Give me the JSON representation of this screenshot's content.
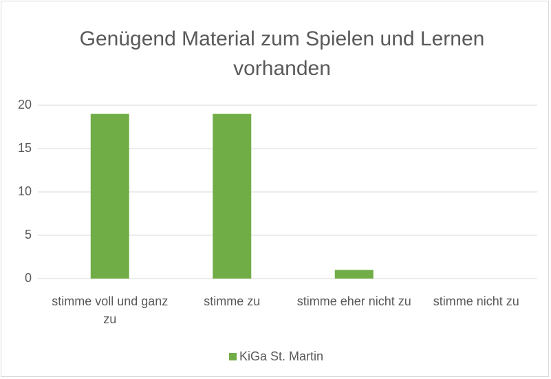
{
  "chart_data": {
    "type": "bar",
    "title": "Genügend Material zum Spielen und Lernen vorhanden",
    "categories": [
      "stimme voll und ganz zu",
      "stimme zu",
      "stimme eher nicht zu",
      "stimme nicht zu"
    ],
    "series": [
      {
        "name": "KiGa St. Martin",
        "color": "#70ad47",
        "values": [
          19,
          19,
          1,
          0
        ]
      }
    ],
    "ylim": [
      0,
      20
    ],
    "yticks": [
      0,
      5,
      10,
      15,
      20
    ],
    "grid": true,
    "legend": "bottom"
  }
}
